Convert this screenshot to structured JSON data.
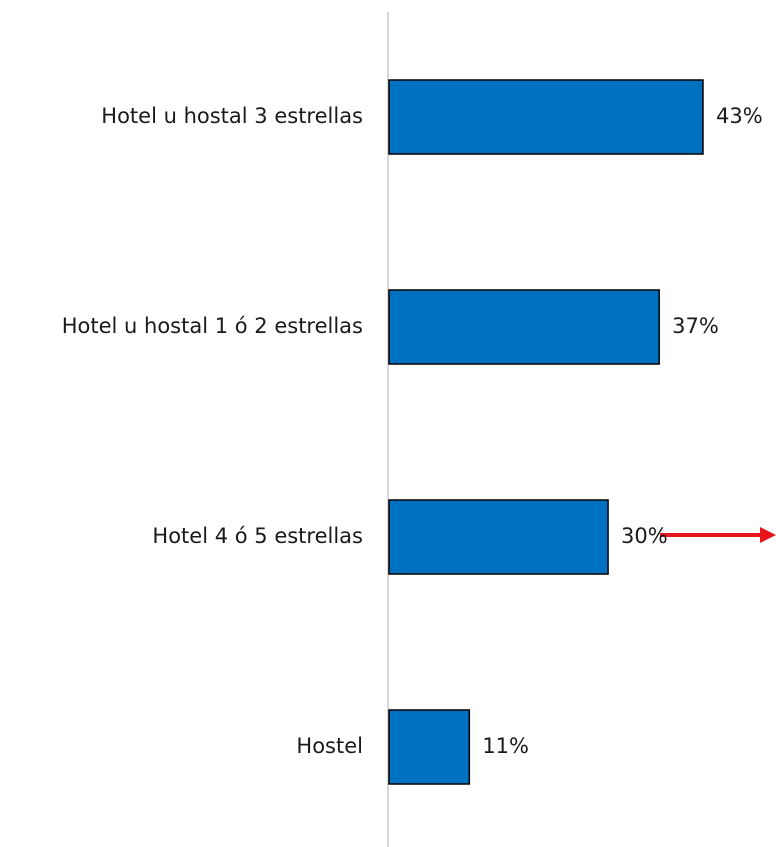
{
  "chart_data": {
    "type": "hbar",
    "categories": [
      "Hotel u hostal 3 estrellas",
      "Hotel u hostal 1 ó 2 estrellas",
      "Hotel 4 ó 5 estrellas",
      "Hostel"
    ],
    "values": [
      43,
      37,
      30,
      11
    ],
    "value_labels": [
      "43%",
      "37%",
      "30%",
      "11%"
    ],
    "color": "#0070c0",
    "xlim": [
      0,
      53
    ]
  }
}
